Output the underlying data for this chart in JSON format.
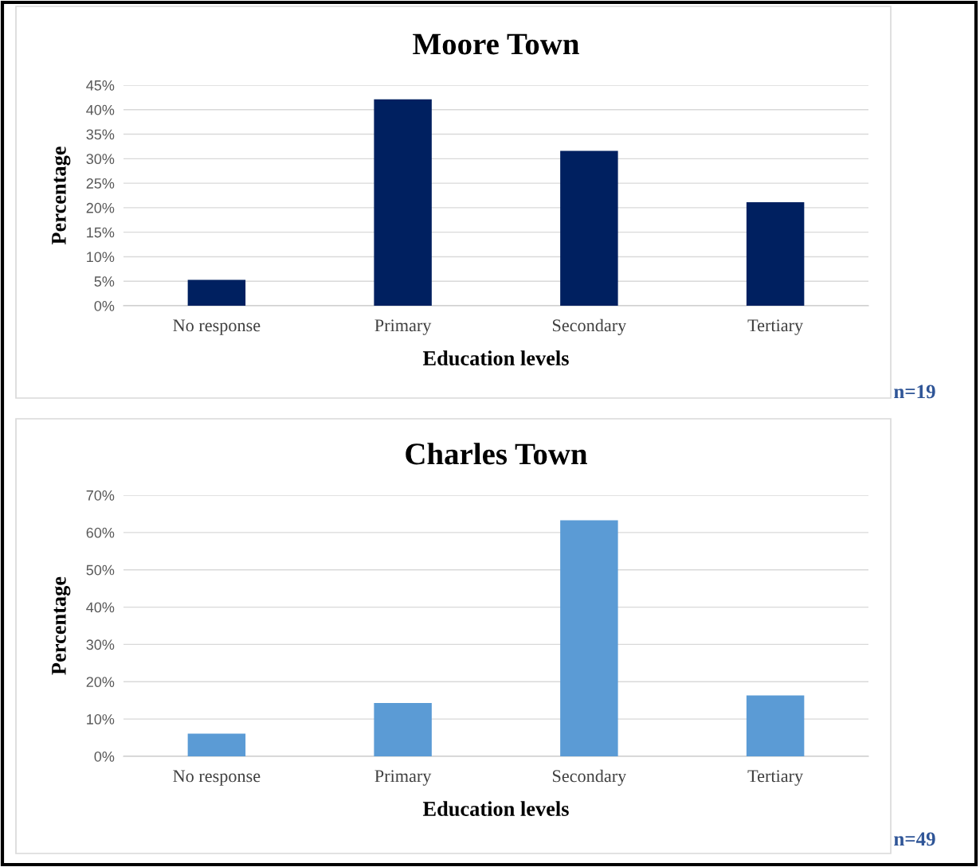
{
  "chart_data": [
    {
      "type": "bar",
      "title": "Moore Town",
      "xlabel": "Education levels",
      "ylabel": "Percentage",
      "categories": [
        "No response",
        "Primary",
        "Secondary",
        "Tertiary"
      ],
      "values": [
        5.3,
        42.1,
        31.6,
        21.1
      ],
      "color": "#002060",
      "ylim": [
        0,
        45
      ],
      "yticks": [
        {
          "value": 0,
          "label": "0%"
        },
        {
          "value": 5,
          "label": "5%"
        },
        {
          "value": 10,
          "label": "10%"
        },
        {
          "value": 15,
          "label": "15%"
        },
        {
          "value": 20,
          "label": "20%"
        },
        {
          "value": 25,
          "label": "25%"
        },
        {
          "value": 30,
          "label": "30%"
        },
        {
          "value": 35,
          "label": "35%"
        },
        {
          "value": 40,
          "label": "40%"
        },
        {
          "value": 45,
          "label": "45%"
        }
      ],
      "grid": "y",
      "annotations": [
        "n=19"
      ]
    },
    {
      "type": "bar",
      "title": "Charles Town",
      "xlabel": "Education levels",
      "ylabel": "Percentage",
      "categories": [
        "No response",
        "Primary",
        "Secondary",
        "Tertiary"
      ],
      "values": [
        6.1,
        14.3,
        63.3,
        16.3
      ],
      "color": "#5b9bd5",
      "ylim": [
        0,
        70
      ],
      "yticks": [
        {
          "value": 0,
          "label": "0%"
        },
        {
          "value": 10,
          "label": "10%"
        },
        {
          "value": 20,
          "label": "20%"
        },
        {
          "value": 30,
          "label": "30%"
        },
        {
          "value": 40,
          "label": "40%"
        },
        {
          "value": 50,
          "label": "50%"
        },
        {
          "value": 60,
          "label": "60%"
        },
        {
          "value": 70,
          "label": "70%"
        }
      ],
      "grid": "y",
      "annotations": [
        "n=49"
      ]
    }
  ]
}
